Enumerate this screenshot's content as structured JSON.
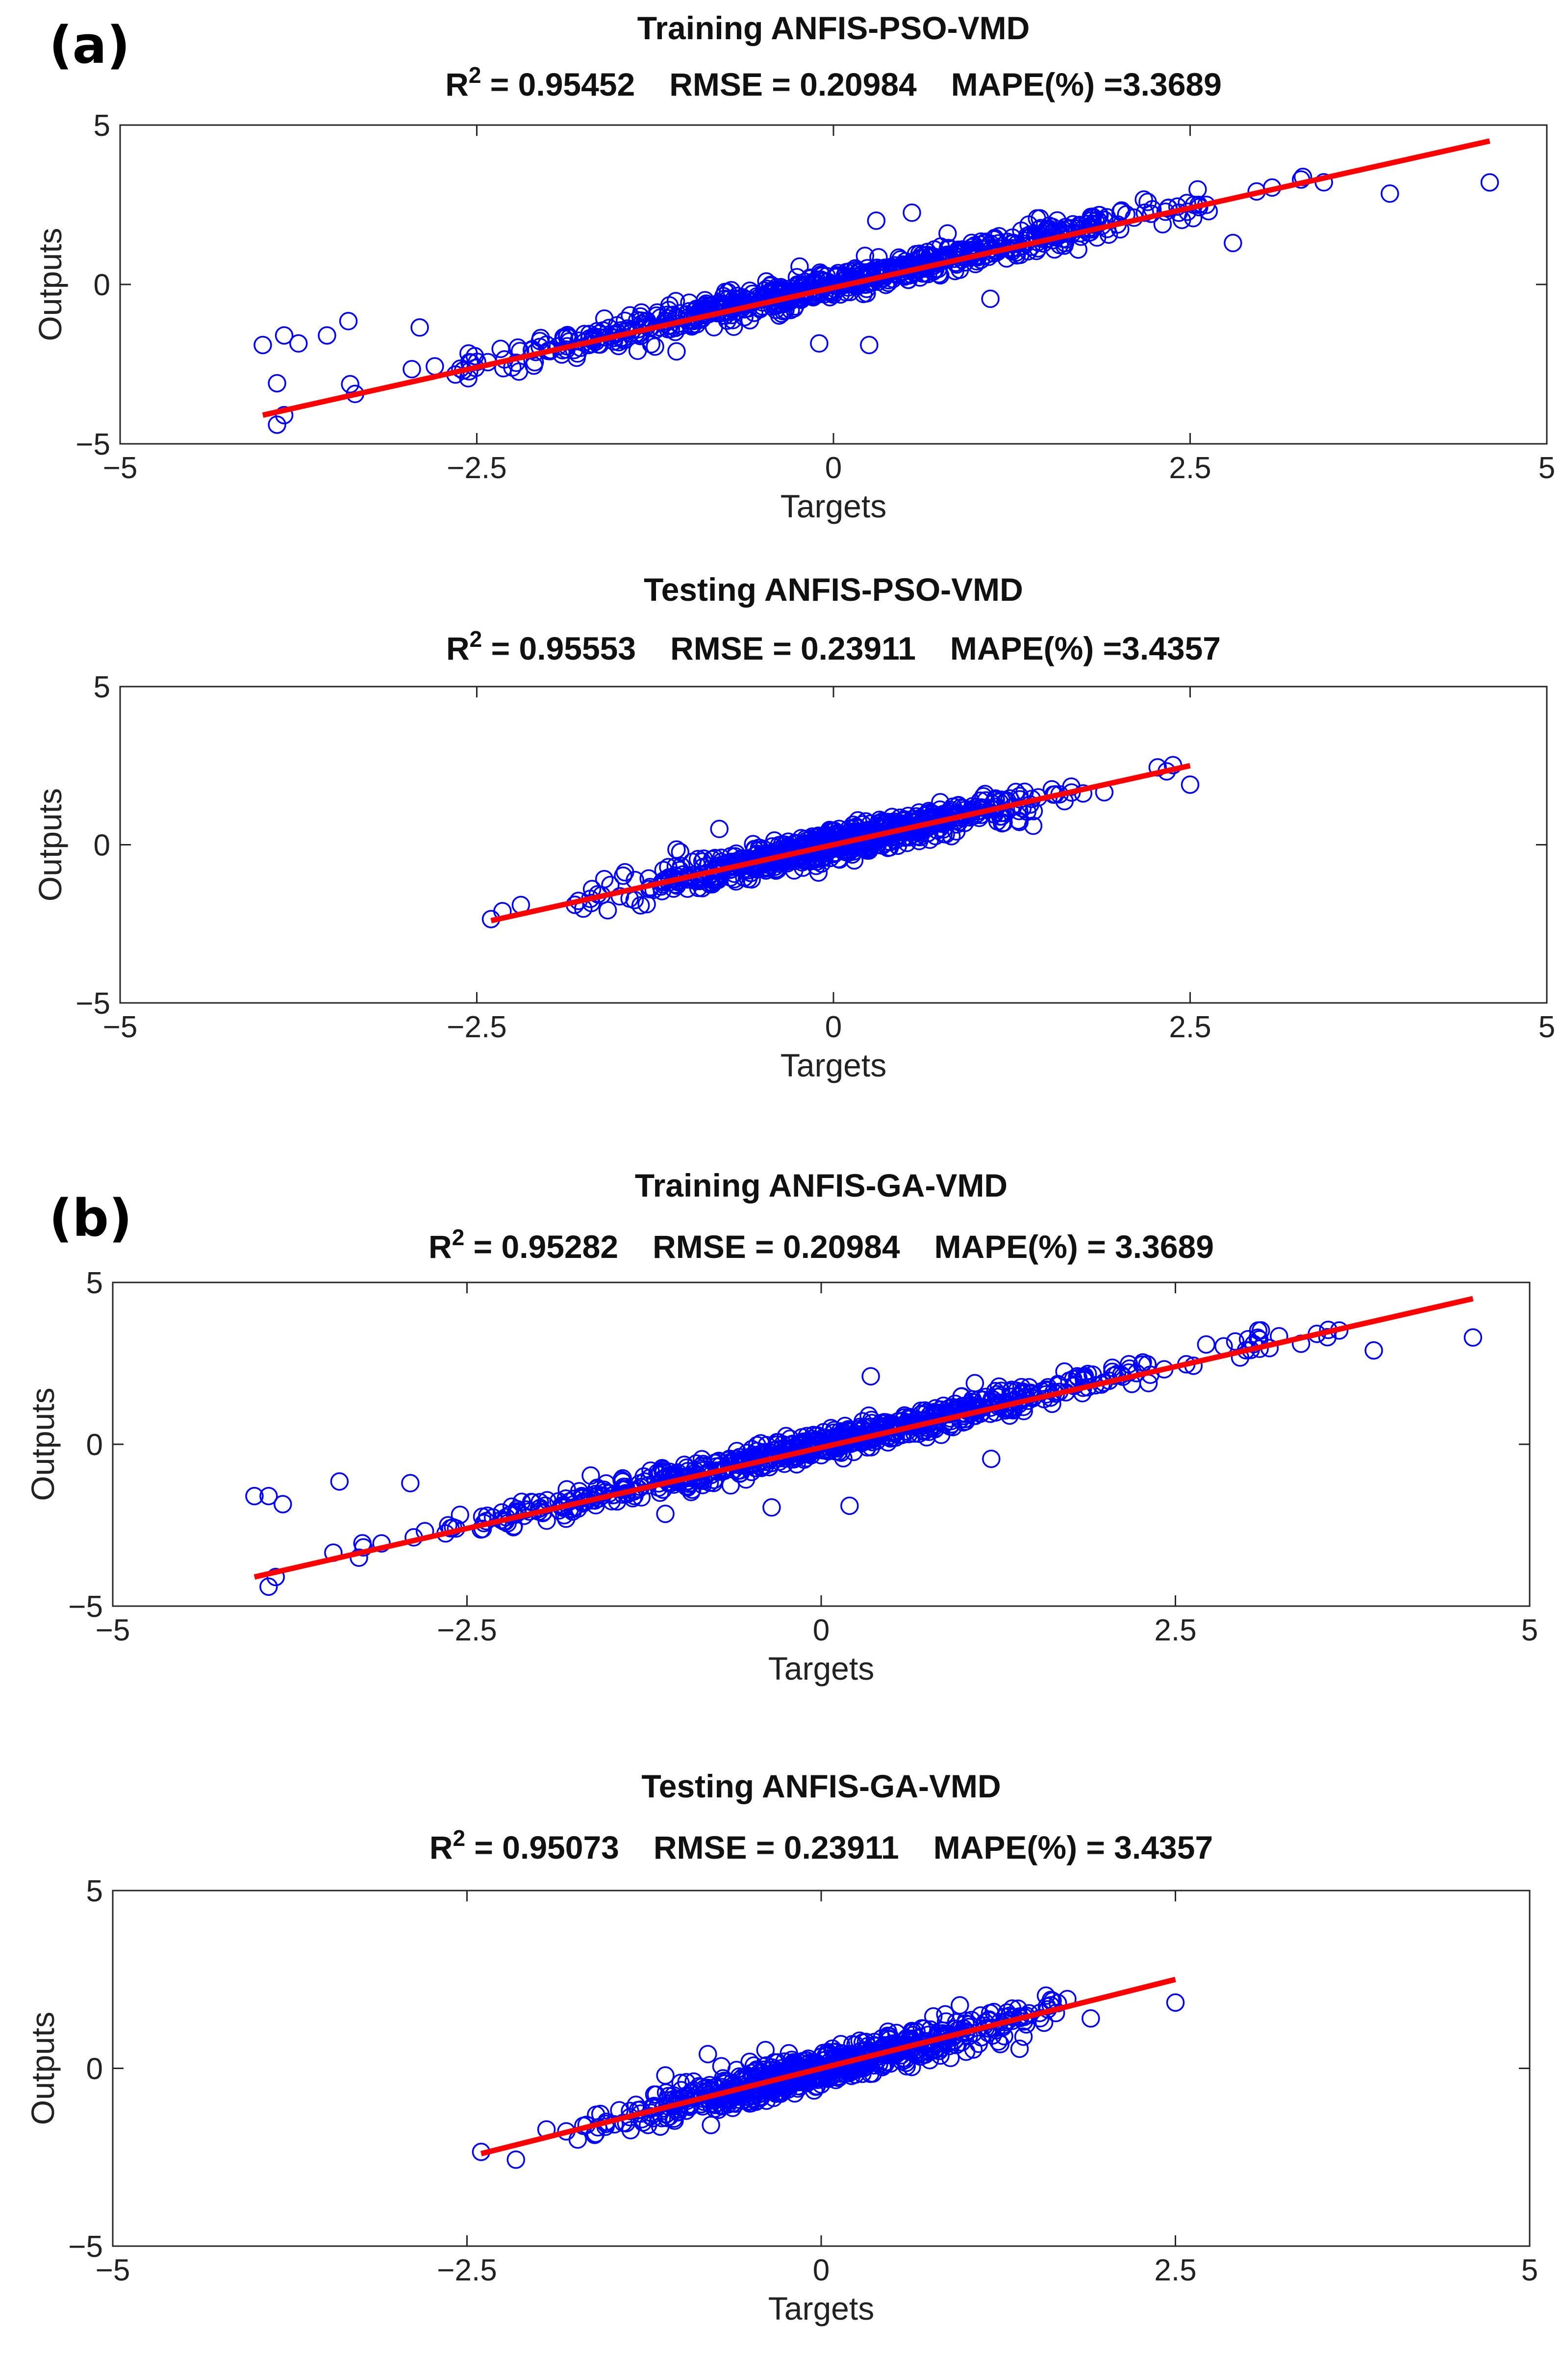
{
  "panel_labels": [
    "(a)",
    "(b)"
  ],
  "colors": {
    "points": "#0000ff",
    "fit_line": "#ff0000",
    "axes": "#262626"
  },
  "chart_data": [
    {
      "type": "scatter",
      "title": "Training ANFIS-PSO-VMD",
      "stats": {
        "r2_label": "R",
        "r2_sup": "2",
        "r2_value": "= 0.95452",
        "rmse": "RMSE = 0.20984",
        "mape": "MAPE(%) =3.3689"
      },
      "xlabel": "Targets",
      "ylabel": "Outputs",
      "xlim": [
        -5,
        5
      ],
      "ylim": [
        -5,
        5
      ],
      "xticks": [
        "-5",
        "-2.5",
        "0",
        "2.5",
        "5"
      ],
      "yticks": [
        "-5",
        "0",
        "5"
      ],
      "data_range": [
        -4.0,
        4.6
      ],
      "spread": 0.21,
      "fit_line": {
        "x": [
          -4.0,
          4.6
        ],
        "y": [
          -4.1,
          4.5
        ]
      },
      "outliers": [
        [
          -4.0,
          -1.9
        ],
        [
          -3.85,
          -1.6
        ],
        [
          -3.75,
          -1.85
        ],
        [
          -3.55,
          -1.6
        ],
        [
          -3.4,
          -1.15
        ],
        [
          -2.9,
          -1.35
        ],
        [
          -3.9,
          -3.1
        ],
        [
          -3.9,
          -4.4
        ],
        [
          -3.85,
          -4.1
        ],
        [
          4.6,
          3.2
        ],
        [
          3.9,
          2.85
        ],
        [
          -0.1,
          -1.85
        ],
        [
          0.25,
          -1.9
        ],
        [
          1.1,
          -0.45
        ],
        [
          0.55,
          2.25
        ],
        [
          0.3,
          2.0
        ],
        [
          -1.1,
          -2.1
        ],
        [
          -1.8,
          -2.3
        ],
        [
          2.8,
          1.3
        ],
        [
          0.8,
          1.6
        ]
      ]
    },
    {
      "type": "scatter",
      "title": "Testing ANFIS-PSO-VMD",
      "stats": {
        "r2_label": "R",
        "r2_sup": "2",
        "r2_value": "= 0.95553",
        "rmse": "RMSE = 0.23911",
        "mape": "MAPE(%) =3.4357"
      },
      "xlabel": "Targets",
      "ylabel": "Outputs",
      "xlim": [
        -5,
        5
      ],
      "ylim": [
        -5,
        5
      ],
      "xticks": [
        "-5",
        "-2.5",
        "0",
        "2.5",
        "5"
      ],
      "yticks": [
        "-5",
        "0",
        "5"
      ],
      "data_range": [
        -2.4,
        2.5
      ],
      "spread": 0.24,
      "fit_line": {
        "x": [
          -2.4,
          2.5
        ],
        "y": [
          -2.4,
          2.5
        ]
      },
      "outliers": [
        [
          -2.4,
          -2.35
        ],
        [
          -0.8,
          0.5
        ],
        [
          2.5,
          1.9
        ],
        [
          -1.1,
          -0.15
        ],
        [
          1.4,
          0.6
        ]
      ]
    },
    {
      "type": "scatter",
      "title": "Training ANFIS-GA-VMD",
      "stats": {
        "r2_label": "R",
        "r2_sup": "2",
        "r2_value": "= 0.95282",
        "rmse": "RMSE = 0.20984",
        "mape": "MAPE(%) = 3.3689"
      },
      "xlabel": "Targets",
      "ylabel": "Outputs",
      "xlim": [
        -5,
        5
      ],
      "ylim": [
        -5,
        5
      ],
      "xticks": [
        "-5",
        "-2.5",
        "0",
        "2.5",
        "5"
      ],
      "yticks": [
        "-5",
        "0",
        "5"
      ],
      "data_range": [
        -4.0,
        4.6
      ],
      "spread": 0.21,
      "fit_line": {
        "x": [
          -4.0,
          4.6
        ],
        "y": [
          -4.1,
          4.5
        ]
      },
      "outliers": [
        [
          -4.0,
          -1.6
        ],
        [
          -3.9,
          -1.6
        ],
        [
          -3.8,
          -1.85
        ],
        [
          -3.4,
          -1.15
        ],
        [
          -2.9,
          -1.2
        ],
        [
          -3.9,
          -4.4
        ],
        [
          -3.85,
          -4.1
        ],
        [
          4.6,
          3.3
        ],
        [
          3.9,
          2.9
        ],
        [
          -0.35,
          -1.95
        ],
        [
          0.2,
          -1.9
        ],
        [
          1.2,
          -0.45
        ],
        [
          0.35,
          2.1
        ],
        [
          -1.1,
          -2.15
        ],
        [
          -1.8,
          -2.3
        ]
      ]
    },
    {
      "type": "scatter",
      "title": "Testing ANFIS-GA-VMD",
      "stats": {
        "r2_label": "R",
        "r2_sup": "2",
        "r2_value": "= 0.95073",
        "rmse": "RMSE = 0.23911",
        "mape": "MAPE(%) = 3.4357"
      },
      "xlabel": "Targets",
      "ylabel": "Outputs",
      "xlim": [
        -5,
        5
      ],
      "ylim": [
        -5,
        5
      ],
      "xticks": [
        "-5",
        "-2.5",
        "0",
        "2.5",
        "5"
      ],
      "yticks": [
        "-5",
        "0",
        "5"
      ],
      "data_range": [
        -2.4,
        2.5
      ],
      "spread": 0.24,
      "fit_line": {
        "x": [
          -2.4,
          2.5
        ],
        "y": [
          -2.4,
          2.5
        ]
      },
      "outliers": [
        [
          -2.4,
          -2.35
        ],
        [
          -0.8,
          0.4
        ],
        [
          2.5,
          1.85
        ],
        [
          -1.1,
          -0.2
        ],
        [
          1.4,
          0.55
        ]
      ]
    }
  ]
}
